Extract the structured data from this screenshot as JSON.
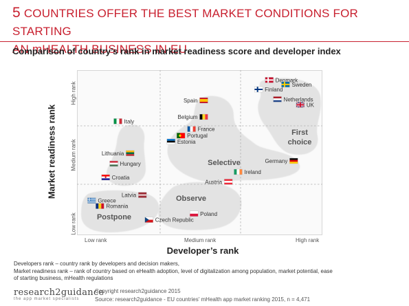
{
  "title": {
    "num": "5",
    "line1_rest": " COUNTRIES OFFER THE BEST MARKET CONDITIONS FOR STARTING",
    "line2": "AN mHEALTH BUSINESS IN EU"
  },
  "subtitle": "Comparison of country’s rank in market readiness score and developer index",
  "colors": {
    "accent": "#c8202f",
    "cluster_fill": "#e3e3e3",
    "grid": "#b0b0b0"
  },
  "chart_data": {
    "type": "scatter",
    "xlabel": "Developer’s rank",
    "ylabel": "Market readiness rank",
    "x_ticks": [
      "Low rank",
      "Medium rank",
      "High rank"
    ],
    "y_ticks": [
      "Low rank",
      "Medium rank",
      "High rank"
    ],
    "xlim": [
      0,
      3
    ],
    "ylim": [
      0,
      3
    ],
    "grid": true,
    "zones": [
      {
        "label": "First choice",
        "lines": [
          "First",
          "choice"
        ]
      },
      {
        "label": "Selective",
        "lines": [
          "Selective"
        ]
      },
      {
        "label": "Observe",
        "lines": [
          "Observe"
        ]
      },
      {
        "label": "Postpone",
        "lines": [
          "Postpone"
        ]
      }
    ],
    "points": [
      {
        "name": "Denmark",
        "x": 2.35,
        "y": 2.82,
        "flag": "denmark",
        "label_pos": "right"
      },
      {
        "name": "Sweden",
        "x": 2.55,
        "y": 2.74,
        "flag": "sweden",
        "label_pos": "right"
      },
      {
        "name": "Finland",
        "x": 2.22,
        "y": 2.65,
        "flag": "finland",
        "label_pos": "right"
      },
      {
        "name": "Netherlands",
        "x": 2.45,
        "y": 2.47,
        "flag": "netherlands",
        "label_pos": "right"
      },
      {
        "name": "UK",
        "x": 2.73,
        "y": 2.37,
        "flag": "uk",
        "label_pos": "right"
      },
      {
        "name": "Spain",
        "x": 1.55,
        "y": 2.45,
        "flag": "spain",
        "label_pos": "left"
      },
      {
        "name": "Belgium",
        "x": 1.55,
        "y": 2.15,
        "flag": "belgium",
        "label_pos": "left"
      },
      {
        "name": "Italy",
        "x": 0.5,
        "y": 2.07,
        "flag": "italy",
        "label_pos": "right"
      },
      {
        "name": "France",
        "x": 1.4,
        "y": 1.93,
        "flag": "france",
        "label_pos": "right"
      },
      {
        "name": "Portugal",
        "x": 1.27,
        "y": 1.81,
        "flag": "portugal",
        "label_pos": "right"
      },
      {
        "name": "Estonia",
        "x": 1.15,
        "y": 1.7,
        "flag": "estonia",
        "label_pos": "right"
      },
      {
        "name": "Lithuania",
        "x": 0.65,
        "y": 1.49,
        "flag": "lithuania",
        "label_pos": "left"
      },
      {
        "name": "Hungary",
        "x": 0.45,
        "y": 1.3,
        "flag": "hungary",
        "label_pos": "right"
      },
      {
        "name": "Germany",
        "x": 2.65,
        "y": 1.35,
        "flag": "germany",
        "label_pos": "left"
      },
      {
        "name": "Ireland",
        "x": 1.97,
        "y": 1.15,
        "flag": "ireland",
        "label_pos": "right"
      },
      {
        "name": "Croatia",
        "x": 0.35,
        "y": 1.05,
        "flag": "croatia",
        "label_pos": "right"
      },
      {
        "name": "Austria",
        "x": 1.85,
        "y": 0.97,
        "flag": "austria",
        "label_pos": "left"
      },
      {
        "name": "Latvia",
        "x": 0.8,
        "y": 0.73,
        "flag": "latvia",
        "label_pos": "left"
      },
      {
        "name": "Greece",
        "x": 0.18,
        "y": 0.63,
        "flag": "greece",
        "label_pos": "right"
      },
      {
        "name": "Romania",
        "x": 0.28,
        "y": 0.53,
        "flag": "romania",
        "label_pos": "right"
      },
      {
        "name": "Poland",
        "x": 1.43,
        "y": 0.39,
        "flag": "poland",
        "label_pos": "right"
      },
      {
        "name": "Czech Republic",
        "x": 0.88,
        "y": 0.28,
        "flag": "czech",
        "label_pos": "right"
      }
    ]
  },
  "notes": [
    "Developers rank – country rank by developers and decision makers,",
    "Market readiness rank –  rank of country based on eHealth adoption, level of digitalization among population, market potential, ease",
    "of starting business, mHealth regulations"
  ],
  "footer": {
    "brand": "research2guidance",
    "tagline": "the app market specialists",
    "copyright": "Copyright research2guidance 2015",
    "source": "Source: research2guidance - EU countries' mHealth app market ranking 2015, n = 4,471"
  }
}
